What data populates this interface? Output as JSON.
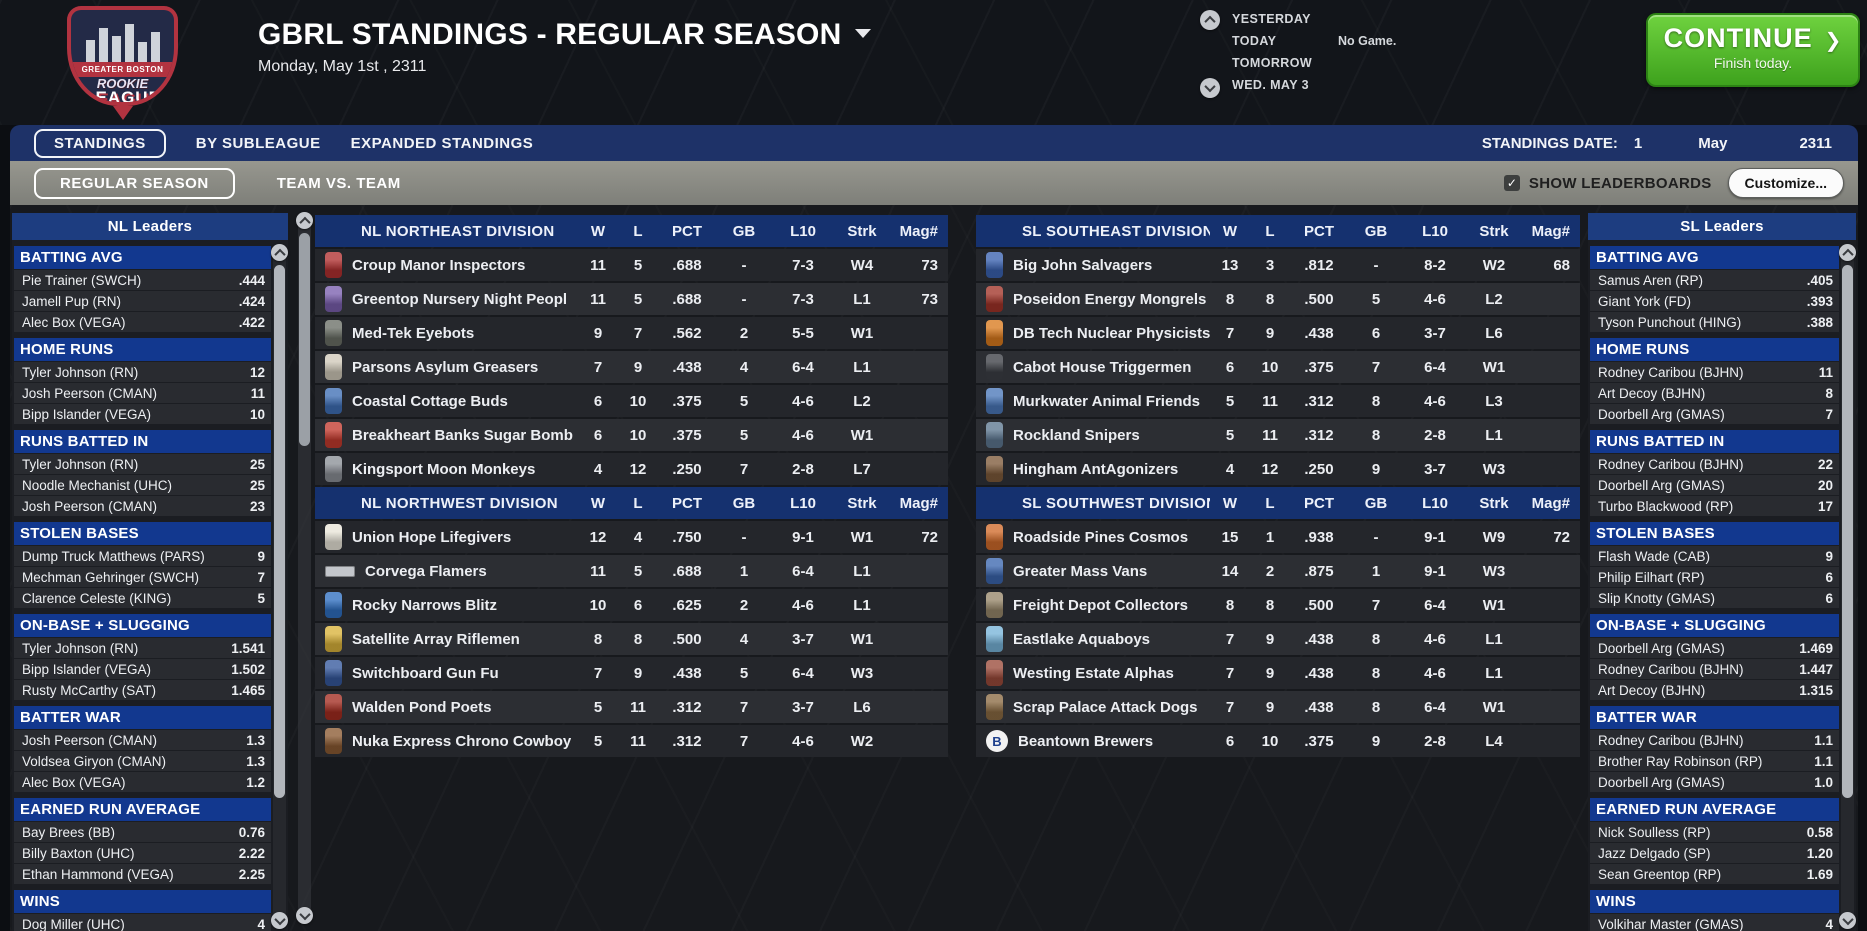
{
  "colors": {
    "accent_green": "#4fb32a",
    "navy_bar": "#1e3268",
    "division_header": "#15316f",
    "category_header": "#12388f",
    "gray_bar": "#8b8c86"
  },
  "header": {
    "title": "GBRL STANDINGS - REGULAR SEASON",
    "date": "Monday, May 1st , 2311",
    "logo": {
      "banner": "GREATER BOSTON",
      "script": "ROOKIE",
      "main": "LEAGUE"
    },
    "schedule": {
      "rows": [
        "YESTERDAY",
        "TODAY",
        "TOMORROW",
        "WED. MAY 3"
      ],
      "note": "No Game."
    },
    "continue": {
      "label": "CONTINUE",
      "arrow": "❯",
      "sub": "Finish today."
    }
  },
  "tabs": {
    "items": [
      "STANDINGS",
      "BY SUBLEAGUE",
      "EXPANDED STANDINGS"
    ],
    "active": "STANDINGS",
    "date": {
      "label": "STANDINGS DATE:",
      "day": "1",
      "month": "May",
      "year": "2311"
    }
  },
  "subtabs": {
    "items": [
      "REGULAR SEASON",
      "TEAM VS. TEAM"
    ],
    "active": "REGULAR SEASON",
    "show_leaderboards": "SHOW LEADERBOARDS",
    "checkbox_checked": "✓",
    "customize": "Customize..."
  },
  "table_columns": [
    "W",
    "L",
    "PCT",
    "GB",
    "L10",
    "Strk",
    "Mag#"
  ],
  "divisions": [
    {
      "title": "NL NORTHEAST DIVISION",
      "teams": [
        {
          "name": "Croup Manor Inspectors",
          "color": "#b03030",
          "w": "11",
          "l": "5",
          "pct": ".688",
          "gb": "-",
          "l10": "7-3",
          "strk": "W4",
          "mag": "73"
        },
        {
          "name": "Greentop Nursery Night Peopl",
          "color": "#7a5fae",
          "w": "11",
          "l": "5",
          "pct": ".688",
          "gb": "-",
          "l10": "7-3",
          "strk": "L1",
          "mag": "73"
        },
        {
          "name": "Med-Tek Eyebots",
          "color": "#6a6f66",
          "w": "9",
          "l": "7",
          "pct": ".562",
          "gb": "2",
          "l10": "5-5",
          "strk": "W1",
          "mag": ""
        },
        {
          "name": "Parsons Asylum Greasers",
          "color": "#cfc8b8",
          "w": "7",
          "l": "9",
          "pct": ".438",
          "gb": "4",
          "l10": "6-4",
          "strk": "L1",
          "mag": ""
        },
        {
          "name": "Coastal Cottage Buds",
          "color": "#3f6fb5",
          "w": "6",
          "l": "10",
          "pct": ".375",
          "gb": "5",
          "l10": "4-6",
          "strk": "L2",
          "mag": ""
        },
        {
          "name": "Breakheart Banks Sugar Bomb",
          "color": "#c23a2e",
          "w": "6",
          "l": "10",
          "pct": ".375",
          "gb": "5",
          "l10": "4-6",
          "strk": "W1",
          "mag": ""
        },
        {
          "name": "Kingsport Moon Monkeys",
          "color": "#8b8f96",
          "w": "4",
          "l": "12",
          "pct": ".250",
          "gb": "7",
          "l10": "2-8",
          "strk": "L7",
          "mag": ""
        }
      ]
    },
    {
      "title": "NL NORTHWEST DIVISION",
      "teams": [
        {
          "name": "Union Hope Lifegivers",
          "color": "#e8e4d8",
          "w": "12",
          "l": "4",
          "pct": ".750",
          "gb": "-",
          "l10": "9-1",
          "strk": "W1",
          "mag": "72"
        },
        {
          "name": "Corvega Flamers",
          "color": "#c3c6cb",
          "shape": "plate",
          "w": "11",
          "l": "5",
          "pct": ".688",
          "gb": "1",
          "l10": "6-4",
          "strk": "L1",
          "mag": ""
        },
        {
          "name": "Rocky Narrows Blitz",
          "color": "#2f6fc0",
          "w": "10",
          "l": "6",
          "pct": ".625",
          "gb": "2",
          "l10": "4-6",
          "strk": "L1",
          "mag": ""
        },
        {
          "name": "Satellite Array Riflemen",
          "color": "#d9b23a",
          "w": "8",
          "l": "8",
          "pct": ".500",
          "gb": "4",
          "l10": "3-7",
          "strk": "W1",
          "mag": ""
        },
        {
          "name": "Switchboard Gun Fu",
          "color": "#35589c",
          "w": "7",
          "l": "9",
          "pct": ".438",
          "gb": "5",
          "l10": "6-4",
          "strk": "W3",
          "mag": ""
        },
        {
          "name": "Walden Pond Poets",
          "color": "#a22c20",
          "w": "5",
          "l": "11",
          "pct": ".312",
          "gb": "7",
          "l10": "3-7",
          "strk": "L6",
          "mag": ""
        },
        {
          "name": "Nuka Express Chrono Cowboy",
          "color": "#8a5a32",
          "w": "5",
          "l": "11",
          "pct": ".312",
          "gb": "7",
          "l10": "4-6",
          "strk": "W2",
          "mag": ""
        }
      ]
    },
    {
      "title": "SL SOUTHEAST DIVISION",
      "teams": [
        {
          "name": "Big John Salvagers",
          "color": "#3a62b0",
          "w": "13",
          "l": "3",
          "pct": ".812",
          "gb": "-",
          "l10": "8-2",
          "strk": "W2",
          "mag": "68"
        },
        {
          "name": "Poseidon Energy Mongrels",
          "color": "#a03328",
          "w": "8",
          "l": "8",
          "pct": ".500",
          "gb": "5",
          "l10": "4-6",
          "strk": "L2",
          "mag": ""
        },
        {
          "name": "DB Tech Nuclear Physicists",
          "color": "#d97a1e",
          "w": "7",
          "l": "9",
          "pct": ".438",
          "gb": "6",
          "l10": "3-7",
          "strk": "L6",
          "mag": ""
        },
        {
          "name": "Cabot House Triggermen",
          "color": "#3c3f45",
          "w": "6",
          "l": "10",
          "pct": ".375",
          "gb": "7",
          "l10": "6-4",
          "strk": "W1",
          "mag": ""
        },
        {
          "name": "Murkwater Animal Friends",
          "color": "#4a77b8",
          "w": "5",
          "l": "11",
          "pct": ".312",
          "gb": "8",
          "l10": "4-6",
          "strk": "L3",
          "mag": ""
        },
        {
          "name": "Rockland Snipers",
          "color": "#5d7790",
          "w": "5",
          "l": "11",
          "pct": ".312",
          "gb": "8",
          "l10": "2-8",
          "strk": "L1",
          "mag": ""
        },
        {
          "name": "Hingham AntAgonizers",
          "color": "#7d5a3a",
          "w": "4",
          "l": "12",
          "pct": ".250",
          "gb": "9",
          "l10": "3-7",
          "strk": "W3",
          "mag": ""
        }
      ]
    },
    {
      "title": "SL SOUTHWEST DIVISION",
      "teams": [
        {
          "name": "Roadside Pines Cosmos",
          "color": "#cf6a2a",
          "w": "15",
          "l": "1",
          "pct": ".938",
          "gb": "-",
          "l10": "9-1",
          "strk": "W9",
          "mag": "72"
        },
        {
          "name": "Greater Mass Vans",
          "color": "#3b66ae",
          "w": "14",
          "l": "2",
          "pct": ".875",
          "gb": "1",
          "l10": "9-1",
          "strk": "W3",
          "mag": ""
        },
        {
          "name": "Freight Depot Collectors",
          "color": "#97876a",
          "w": "8",
          "l": "8",
          "pct": ".500",
          "gb": "7",
          "l10": "6-4",
          "strk": "W1",
          "mag": ""
        },
        {
          "name": "Eastlake Aquaboys",
          "color": "#77b3d8",
          "w": "7",
          "l": "9",
          "pct": ".438",
          "gb": "8",
          "l10": "4-6",
          "strk": "L1",
          "mag": ""
        },
        {
          "name": "Westing Estate Alphas",
          "color": "#9a4a3a",
          "w": "7",
          "l": "9",
          "pct": ".438",
          "gb": "8",
          "l10": "4-6",
          "strk": "L1",
          "mag": ""
        },
        {
          "name": "Scrap Palace Attack Dogs",
          "color": "#8a6a42",
          "w": "7",
          "l": "9",
          "pct": ".438",
          "gb": "8",
          "l10": "6-4",
          "strk": "W1",
          "mag": ""
        },
        {
          "name": "Beantown Brewers",
          "color": "#f2f2f2",
          "shape": "circle",
          "letter": "B",
          "w": "6",
          "l": "10",
          "pct": ".375",
          "gb": "9",
          "l10": "2-8",
          "strk": "L4",
          "mag": ""
        }
      ]
    }
  ],
  "leaders_nl": {
    "title": "NL Leaders",
    "sections": [
      {
        "header": "BATTING AVG",
        "rows": [
          [
            "Pie Trainer (SWCH)",
            ".444"
          ],
          [
            "Jamell Pup (RN)",
            ".424"
          ],
          [
            "Alec Box (VEGA)",
            ".422"
          ]
        ]
      },
      {
        "header": "HOME RUNS",
        "rows": [
          [
            "Tyler Johnson (RN)",
            "12"
          ],
          [
            "Josh Peerson (CMAN)",
            "11"
          ],
          [
            "Bipp Islander (VEGA)",
            "10"
          ]
        ]
      },
      {
        "header": "RUNS BATTED IN",
        "rows": [
          [
            "Tyler Johnson (RN)",
            "25"
          ],
          [
            "Noodle Mechanist (UHC)",
            "25"
          ],
          [
            "Josh Peerson (CMAN)",
            "23"
          ]
        ]
      },
      {
        "header": "STOLEN BASES",
        "rows": [
          [
            "Dump Truck Matthews (PARS)",
            "9"
          ],
          [
            "Mechman Gehringer (SWCH)",
            "7"
          ],
          [
            "Clarence Celeste (KING)",
            "5"
          ]
        ]
      },
      {
        "header": "ON-BASE + SLUGGING",
        "rows": [
          [
            "Tyler Johnson (RN)",
            "1.541"
          ],
          [
            "Bipp Islander (VEGA)",
            "1.502"
          ],
          [
            "Rusty McCarthy (SAT)",
            "1.465"
          ]
        ]
      },
      {
        "header": "BATTER WAR",
        "rows": [
          [
            "Josh Peerson (CMAN)",
            "1.3"
          ],
          [
            "Voldsea Giryon (CMAN)",
            "1.3"
          ],
          [
            "Alec Box (VEGA)",
            "1.2"
          ]
        ]
      },
      {
        "header": "EARNED RUN AVERAGE",
        "rows": [
          [
            "Bay Brees (BB)",
            "0.76"
          ],
          [
            "Billy Baxton (UHC)",
            "2.22"
          ],
          [
            "Ethan Hammond (VEGA)",
            "2.25"
          ]
        ]
      },
      {
        "header": "WINS",
        "rows": [
          [
            "Dog Miller (UHC)",
            "4"
          ]
        ]
      }
    ]
  },
  "leaders_sl": {
    "title": "SL Leaders",
    "sections": [
      {
        "header": "BATTING AVG",
        "rows": [
          [
            "Samus Aren (RP)",
            ".405"
          ],
          [
            "Giant York (FD)",
            ".393"
          ],
          [
            "Tyson Punchout (HING)",
            ".388"
          ]
        ]
      },
      {
        "header": "HOME RUNS",
        "rows": [
          [
            "Rodney Caribou (BJHN)",
            "11"
          ],
          [
            "Art Decoy (BJHN)",
            "8"
          ],
          [
            "Doorbell Arg (GMAS)",
            "7"
          ]
        ]
      },
      {
        "header": "RUNS BATTED IN",
        "rows": [
          [
            "Rodney Caribou (BJHN)",
            "22"
          ],
          [
            "Doorbell Arg (GMAS)",
            "20"
          ],
          [
            "Turbo Blackwood (RP)",
            "17"
          ]
        ]
      },
      {
        "header": "STOLEN BASES",
        "rows": [
          [
            "Flash Wade (CAB)",
            "9"
          ],
          [
            "Philip Eilhart (RP)",
            "6"
          ],
          [
            "Slip Knotty (GMAS)",
            "6"
          ]
        ]
      },
      {
        "header": "ON-BASE + SLUGGING",
        "rows": [
          [
            "Doorbell Arg (GMAS)",
            "1.469"
          ],
          [
            "Rodney Caribou (BJHN)",
            "1.447"
          ],
          [
            "Art Decoy (BJHN)",
            "1.315"
          ]
        ]
      },
      {
        "header": "BATTER WAR",
        "rows": [
          [
            "Rodney Caribou (BJHN)",
            "1.1"
          ],
          [
            "Brother Ray Robinson (RP)",
            "1.1"
          ],
          [
            "Doorbell Arg (GMAS)",
            "1.0"
          ]
        ]
      },
      {
        "header": "EARNED RUN AVERAGE",
        "rows": [
          [
            "Nick Soulless (RP)",
            "0.58"
          ],
          [
            "Jazz Delgado (SP)",
            "1.20"
          ],
          [
            "Sean Greentop (RP)",
            "1.69"
          ]
        ]
      },
      {
        "header": "WINS",
        "rows": [
          [
            "Volkihar Master (GMAS)",
            "4"
          ]
        ]
      }
    ]
  }
}
